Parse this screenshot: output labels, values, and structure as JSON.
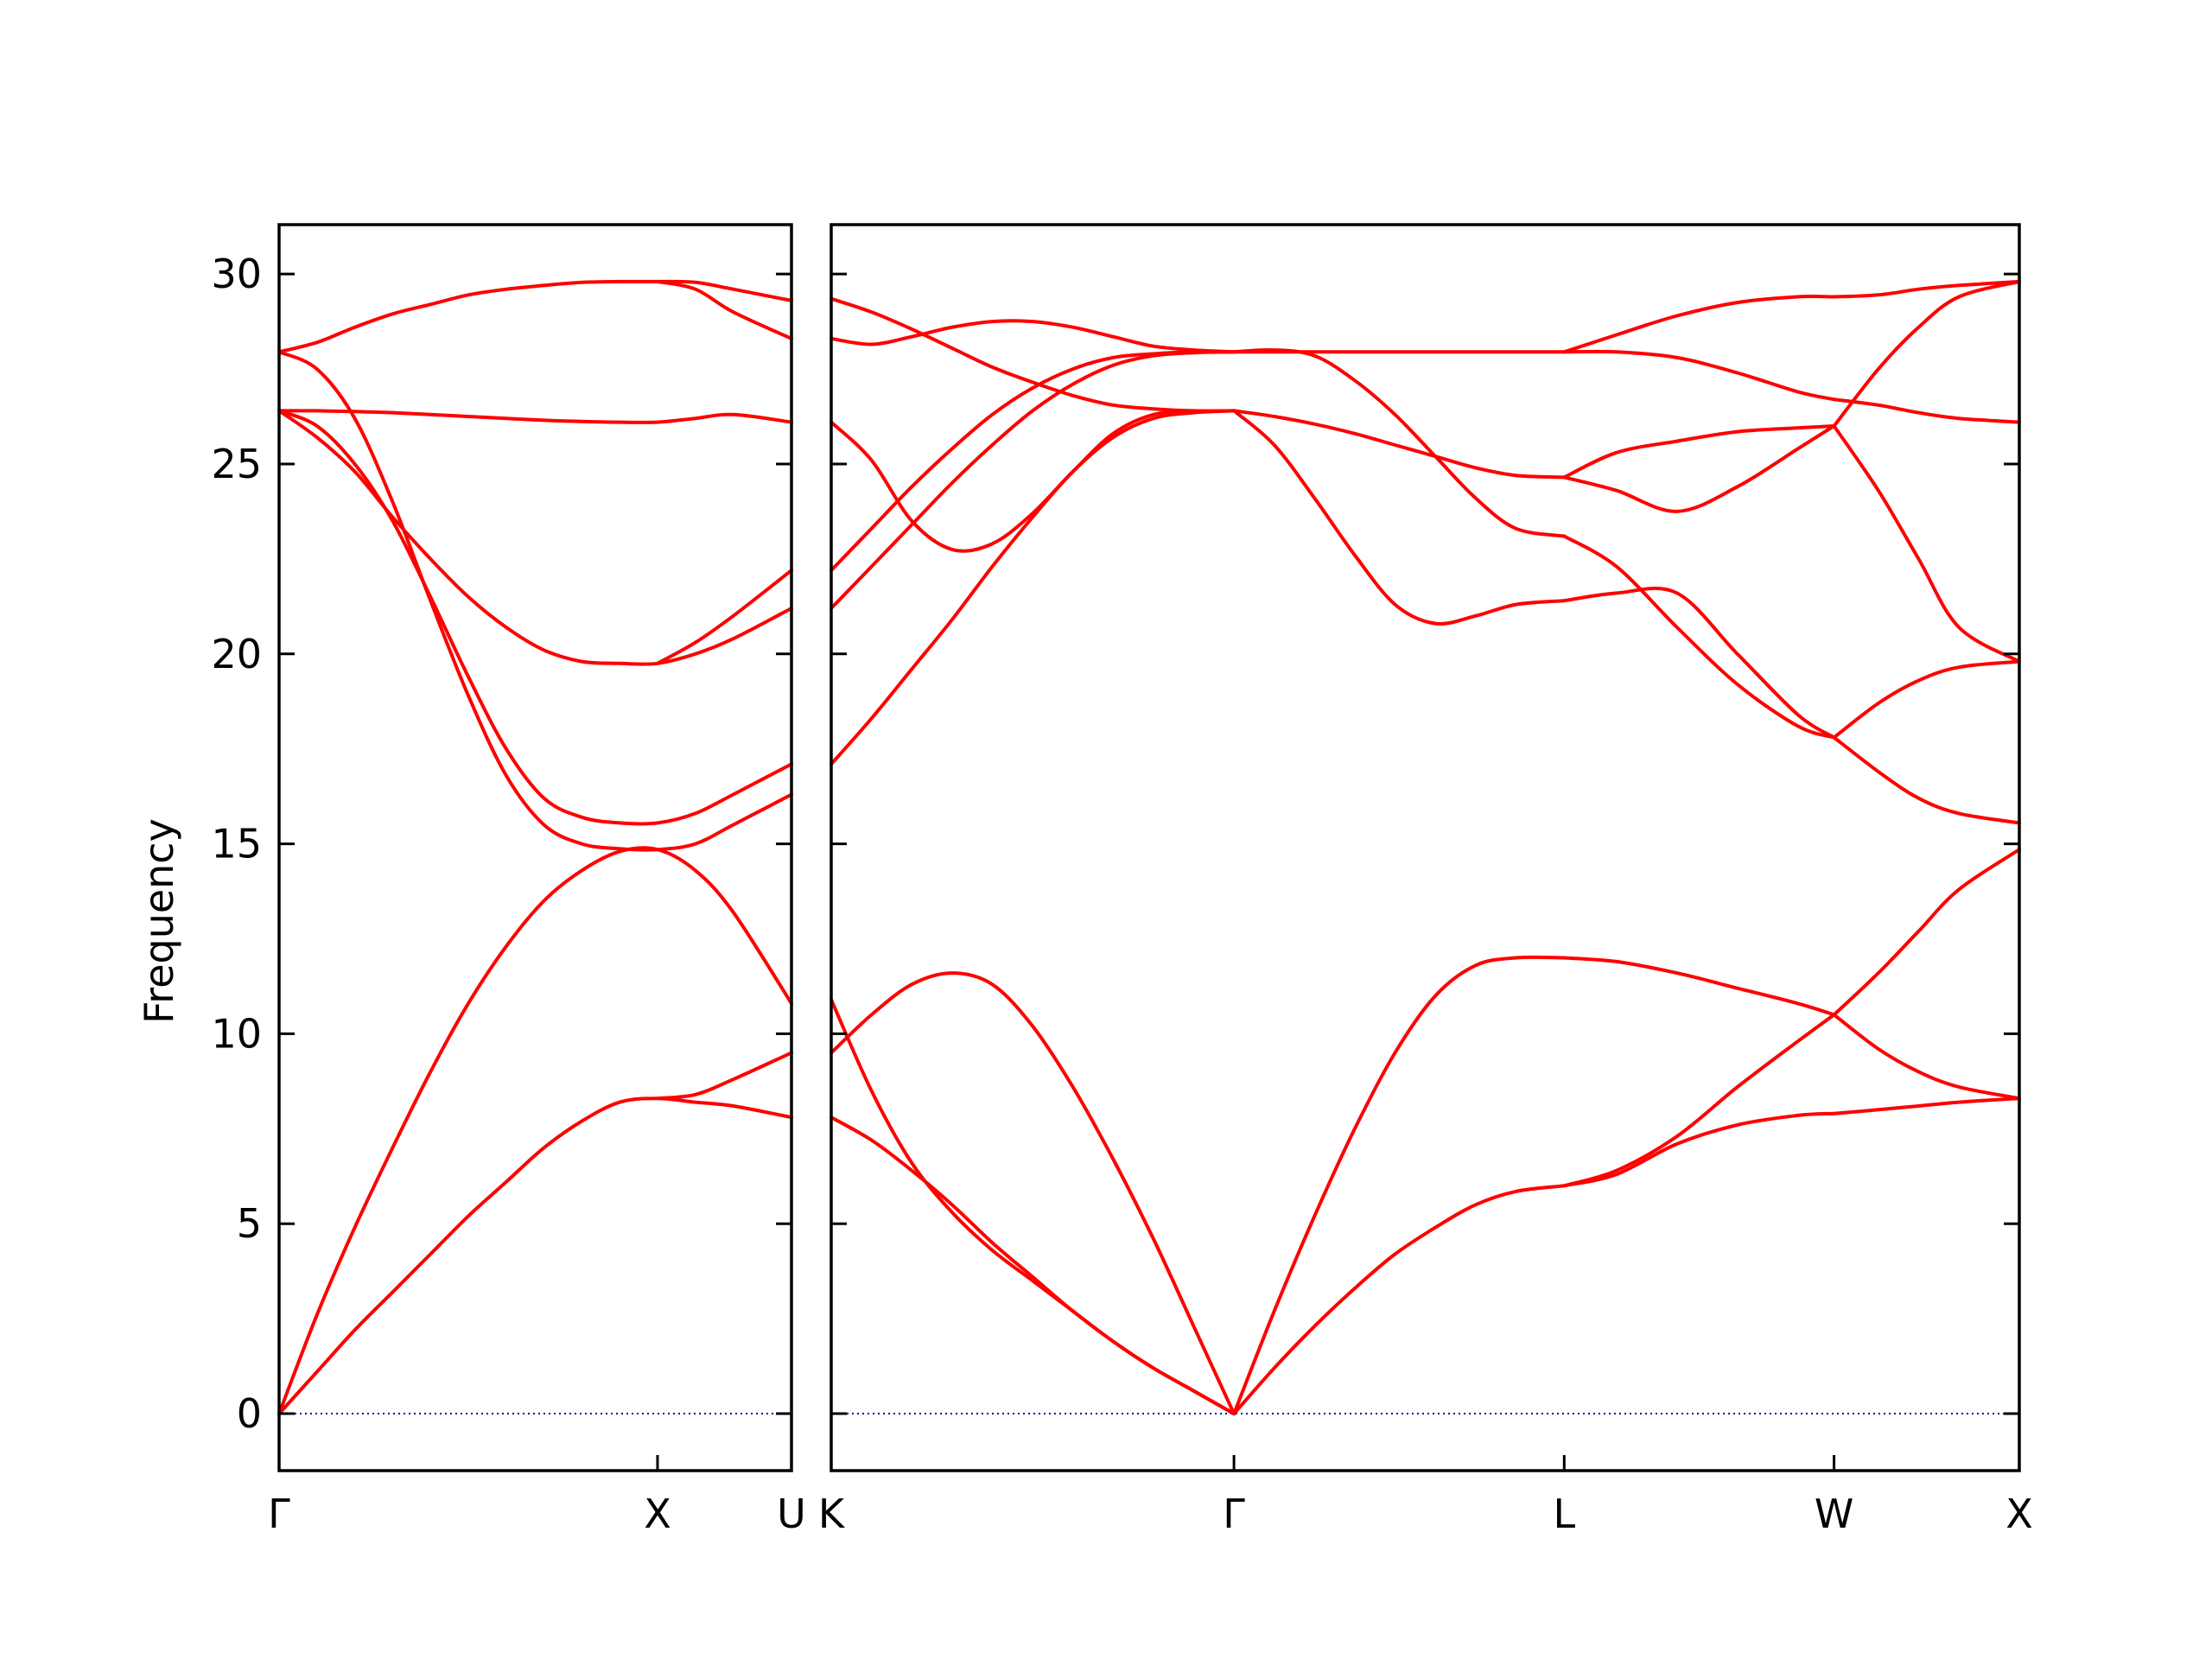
{
  "chart_data": {
    "type": "line",
    "ylabel": "Frequency",
    "ylim": [
      -1.5,
      31.3
    ],
    "yticks": [
      0,
      5,
      10,
      15,
      20,
      25,
      30
    ],
    "colors": {
      "band": "#ff0000",
      "zero_line": "#0000aa",
      "axes": "#000000"
    },
    "panels": [
      {
        "xlim": [
          0,
          1.354
        ],
        "xticks": [
          {
            "x": 0,
            "label": "Γ"
          },
          {
            "x": 1.0,
            "label": "X"
          },
          {
            "x": 1.354,
            "label": "U"
          }
        ],
        "series": [
          {
            "x": [
              0,
              0.1,
              0.2,
              0.3,
              0.4,
              0.5,
              0.6,
              0.7,
              0.8,
              0.9,
              1.0,
              1.1,
              1.2,
              1.354
            ],
            "y": [
              0,
              1.1,
              2.2,
              3.2,
              4.2,
              5.2,
              6.1,
              7.0,
              7.7,
              8.2,
              8.3,
              8.2,
              8.1,
              7.8
            ]
          },
          {
            "x": [
              0,
              0.1,
              0.2,
              0.3,
              0.4,
              0.5,
              0.6,
              0.7,
              0.8,
              0.9,
              1.0,
              1.1,
              1.2,
              1.354
            ],
            "y": [
              0,
              2.6,
              4.9,
              7.0,
              9.0,
              10.8,
              12.3,
              13.5,
              14.3,
              14.8,
              14.85,
              14.3,
              13.2,
              10.8
            ]
          },
          {
            "x": [
              1.0,
              1.1,
              1.2,
              1.354
            ],
            "y": [
              8.3,
              8.4,
              8.8,
              9.5
            ]
          },
          {
            "x": [
              0,
              0.1,
              0.2,
              0.3,
              0.4,
              0.5,
              0.6,
              0.7,
              0.8,
              0.9,
              1.0,
              1.1,
              1.2,
              1.354
            ],
            "y": [
              26.4,
              26.0,
              25.0,
              23.5,
              21.5,
              19.4,
              17.5,
              16.2,
              15.7,
              15.55,
              15.55,
              15.8,
              16.3,
              17.1
            ]
          },
          {
            "x": [
              0,
              0.1,
              0.2,
              0.3,
              0.4,
              0.5,
              0.6,
              0.7,
              0.8,
              0.9,
              1.0,
              1.1,
              1.2,
              1.354
            ],
            "y": [
              26.4,
              25.7,
              24.8,
              23.6,
              22.5,
              21.5,
              20.7,
              20.1,
              19.8,
              19.75,
              19.75,
              20.0,
              20.4,
              21.2
            ]
          },
          {
            "x": [
              1.0,
              1.1,
              1.2,
              1.354
            ],
            "y": [
              19.75,
              20.3,
              21.0,
              22.2
            ]
          },
          {
            "x": [
              0,
              0.1,
              0.2,
              0.3,
              0.4,
              0.5,
              0.6,
              0.7,
              0.8,
              0.9,
              1.0,
              1.1,
              1.2,
              1.354
            ],
            "y": [
              26.4,
              26.4,
              26.38,
              26.35,
              26.3,
              26.25,
              26.2,
              26.15,
              26.12,
              26.1,
              26.1,
              26.2,
              26.3,
              26.1
            ]
          },
          {
            "x": [
              0,
              0.1,
              0.2,
              0.3,
              0.4,
              0.5,
              0.6,
              0.7,
              0.8,
              0.9,
              1.0,
              1.1,
              1.2,
              1.354
            ],
            "y": [
              27.95,
              27.5,
              26.2,
              24.0,
              21.4,
              18.9,
              16.8,
              15.5,
              15.0,
              14.87,
              14.85,
              15.0,
              15.5,
              16.3
            ]
          },
          {
            "x": [
              0,
              0.1,
              0.2,
              0.3,
              0.4,
              0.5,
              0.6,
              0.7,
              0.8,
              0.9,
              1.0,
              1.1,
              1.2,
              1.354
            ],
            "y": [
              27.95,
              28.2,
              28.6,
              28.95,
              29.2,
              29.45,
              29.6,
              29.7,
              29.78,
              29.8,
              29.8,
              29.78,
              29.6,
              29.3
            ]
          },
          {
            "x": [
              1.0,
              1.1,
              1.2,
              1.354
            ],
            "y": [
              29.8,
              29.6,
              29.0,
              28.3
            ]
          }
        ]
      },
      {
        "xlim": [
          0,
          2.95
        ],
        "xticks": [
          {
            "x": 0,
            "label": "K"
          },
          {
            "x": 1.0,
            "label": "Γ"
          },
          {
            "x": 1.82,
            "label": "L"
          },
          {
            "x": 2.49,
            "label": "W"
          },
          {
            "x": 2.95,
            "label": "X"
          }
        ],
        "series": [
          {
            "x": [
              0,
              0.1,
              0.2,
              0.3,
              0.4,
              0.5,
              0.6,
              0.7,
              0.8,
              0.9,
              1.0
            ],
            "y": [
              7.8,
              7.2,
              6.4,
              5.5,
              4.5,
              3.6,
              2.7,
              1.9,
              1.2,
              0.6,
              0
            ]
          },
          {
            "x": [
              0,
              0.1,
              0.2,
              0.3,
              0.4,
              0.5,
              0.6,
              0.7,
              0.8,
              0.9,
              1.0
            ],
            "y": [
              10.9,
              8.5,
              6.6,
              5.3,
              4.3,
              3.5,
              2.7,
              1.9,
              1.2,
              0.6,
              0
            ]
          },
          {
            "x": [
              0,
              0.1,
              0.2,
              0.3,
              0.4,
              0.5,
              0.6,
              0.7,
              0.8,
              0.9,
              1.0
            ],
            "y": [
              9.5,
              10.5,
              11.3,
              11.6,
              11.3,
              10.2,
              8.6,
              6.7,
              4.6,
              2.3,
              0
            ]
          },
          {
            "x": [
              1.0,
              1.1,
              1.2,
              1.3,
              1.4,
              1.5,
              1.6,
              1.7,
              1.82
            ],
            "y": [
              0,
              1.2,
              2.3,
              3.3,
              4.2,
              4.9,
              5.5,
              5.85,
              6.0
            ]
          },
          {
            "x": [
              1.0,
              1.1,
              1.2,
              1.3,
              1.4,
              1.5,
              1.6,
              1.7,
              1.82
            ],
            "y": [
              0,
              2.7,
              5.2,
              7.5,
              9.5,
              11.0,
              11.8,
              12.0,
              12.0
            ]
          },
          {
            "x": [
              1.82,
              1.95,
              2.1,
              2.25,
              2.4,
              2.49
            ],
            "y": [
              6.0,
              6.3,
              7.1,
              7.6,
              7.85,
              7.9
            ]
          },
          {
            "x": [
              1.82,
              1.95,
              2.1,
              2.25,
              2.4,
              2.49
            ],
            "y": [
              6.0,
              6.4,
              7.3,
              8.6,
              9.8,
              10.5
            ]
          },
          {
            "x": [
              1.82,
              1.95,
              2.1,
              2.25,
              2.4,
              2.49
            ],
            "y": [
              12.0,
              11.9,
              11.6,
              11.2,
              10.8,
              10.5
            ]
          },
          {
            "x": [
              2.49,
              2.6,
              2.7,
              2.8,
              2.95
            ],
            "y": [
              7.9,
              8.0,
              8.1,
              8.2,
              8.3
            ]
          },
          {
            "x": [
              2.49,
              2.6,
              2.7,
              2.8,
              2.95
            ],
            "y": [
              10.5,
              9.6,
              9.0,
              8.6,
              8.3
            ]
          },
          {
            "x": [
              2.49,
              2.6,
              2.7,
              2.8,
              2.95
            ],
            "y": [
              10.5,
              11.6,
              12.7,
              13.8,
              14.85
            ]
          },
          {
            "x": [
              0,
              0.1,
              0.2,
              0.3,
              0.4,
              0.5,
              0.6,
              0.7,
              0.8,
              0.9,
              1.0
            ],
            "y": [
              17.1,
              18.3,
              19.6,
              20.9,
              22.3,
              23.6,
              24.8,
              25.7,
              26.2,
              26.35,
              26.4
            ]
          },
          {
            "x": [
              0,
              0.1,
              0.2,
              0.3,
              0.4,
              0.5,
              0.6,
              0.7,
              0.8,
              0.9,
              1.0
            ],
            "y": [
              26.1,
              25.1,
              23.5,
              22.75,
              22.9,
              23.7,
              24.8,
              25.8,
              26.3,
              26.38,
              26.4
            ]
          },
          {
            "x": [
              0,
              0.1,
              0.2,
              0.3,
              0.4,
              0.5,
              0.6,
              0.7,
              0.8,
              0.9,
              1.0
            ],
            "y": [
              21.2,
              22.3,
              23.4,
              24.5,
              25.5,
              26.4,
              27.1,
              27.6,
              27.85,
              27.93,
              27.95
            ]
          },
          {
            "x": [
              0,
              0.1,
              0.2,
              0.3,
              0.4,
              0.5,
              0.6,
              0.7,
              0.8,
              0.9,
              1.0
            ],
            "y": [
              22.2,
              23.3,
              24.4,
              25.4,
              26.3,
              27.0,
              27.5,
              27.8,
              27.9,
              27.95,
              27.95
            ]
          },
          {
            "x": [
              0,
              0.1,
              0.2,
              0.3,
              0.4,
              0.5,
              0.6,
              0.7,
              0.8,
              0.9,
              1.0
            ],
            "y": [
              28.3,
              28.15,
              28.35,
              28.6,
              28.75,
              28.75,
              28.6,
              28.35,
              28.1,
              28.0,
              27.95
            ]
          },
          {
            "x": [
              0,
              0.1,
              0.2,
              0.3,
              0.4,
              0.5,
              0.6,
              0.7,
              0.8,
              0.9,
              1.0
            ],
            "y": [
              29.35,
              29.0,
              28.55,
              28.05,
              27.55,
              27.15,
              26.8,
              26.55,
              26.45,
              26.4,
              26.4
            ]
          },
          {
            "x": [
              1.0,
              1.1,
              1.2,
              1.3,
              1.4,
              1.5,
              1.6,
              1.7,
              1.82
            ],
            "y": [
              27.95,
              27.95,
              27.95,
              27.95,
              27.95,
              27.95,
              27.95,
              27.95,
              27.95
            ]
          },
          {
            "x": [
              1.0,
              1.1,
              1.2,
              1.3,
              1.4,
              1.5,
              1.6,
              1.7,
              1.82
            ],
            "y": [
              26.4,
              26.25,
              26.05,
              25.8,
              25.5,
              25.2,
              24.9,
              24.7,
              24.65
            ]
          },
          {
            "x": [
              1.0,
              1.1,
              1.2,
              1.3,
              1.4,
              1.5,
              1.6,
              1.7,
              1.82
            ],
            "y": [
              26.4,
              25.5,
              24.1,
              22.6,
              21.3,
              20.8,
              21.0,
              21.3,
              21.4
            ]
          },
          {
            "x": [
              1.0,
              1.1,
              1.2,
              1.3,
              1.4,
              1.5,
              1.6,
              1.7,
              1.82
            ],
            "y": [
              27.95,
              28.0,
              27.85,
              27.2,
              26.3,
              25.2,
              24.1,
              23.3,
              23.1
            ]
          },
          {
            "x": [
              1.82,
              1.95,
              2.1,
              2.25,
              2.4,
              2.49
            ],
            "y": [
              27.95,
              28.4,
              28.9,
              29.25,
              29.4,
              29.4
            ]
          },
          {
            "x": [
              1.82,
              1.95,
              2.1,
              2.25,
              2.4,
              2.49
            ],
            "y": [
              27.95,
              27.95,
              27.8,
              27.4,
              26.9,
              26.7
            ]
          },
          {
            "x": [
              1.82,
              1.95,
              2.1,
              2.25,
              2.4,
              2.49
            ],
            "y": [
              24.65,
              25.3,
              25.6,
              25.85,
              25.95,
              26.0
            ]
          },
          {
            "x": [
              1.82,
              1.95,
              2.1,
              2.25,
              2.4,
              2.49
            ],
            "y": [
              24.65,
              24.3,
              23.75,
              24.4,
              25.4,
              26.0
            ]
          },
          {
            "x": [
              1.82,
              1.95,
              2.1,
              2.25,
              2.4,
              2.49
            ],
            "y": [
              21.4,
              21.6,
              21.6,
              20.0,
              18.4,
              17.8
            ]
          },
          {
            "x": [
              1.82,
              1.95,
              2.1,
              2.25,
              2.4,
              2.49
            ],
            "y": [
              23.1,
              22.3,
              20.7,
              19.2,
              18.1,
              17.8
            ]
          },
          {
            "x": [
              2.49,
              2.6,
              2.7,
              2.8,
              2.95
            ],
            "y": [
              29.4,
              29.45,
              29.6,
              29.7,
              29.8
            ]
          },
          {
            "x": [
              2.49,
              2.6,
              2.7,
              2.8,
              2.95
            ],
            "y": [
              26.7,
              26.55,
              26.35,
              26.2,
              26.1
            ]
          },
          {
            "x": [
              2.49,
              2.6,
              2.7,
              2.8,
              2.95
            ],
            "y": [
              26.0,
              27.5,
              28.6,
              29.4,
              29.8
            ]
          },
          {
            "x": [
              2.49,
              2.6,
              2.7,
              2.8,
              2.95
            ],
            "y": [
              26.0,
              24.3,
              22.5,
              20.7,
              19.8
            ]
          },
          {
            "x": [
              2.49,
              2.6,
              2.7,
              2.8,
              2.95
            ],
            "y": [
              17.8,
              18.7,
              19.3,
              19.65,
              19.8
            ]
          },
          {
            "x": [
              2.49,
              2.6,
              2.7,
              2.8,
              2.95
            ],
            "y": [
              17.8,
              16.9,
              16.2,
              15.8,
              15.55
            ]
          }
        ]
      }
    ]
  }
}
